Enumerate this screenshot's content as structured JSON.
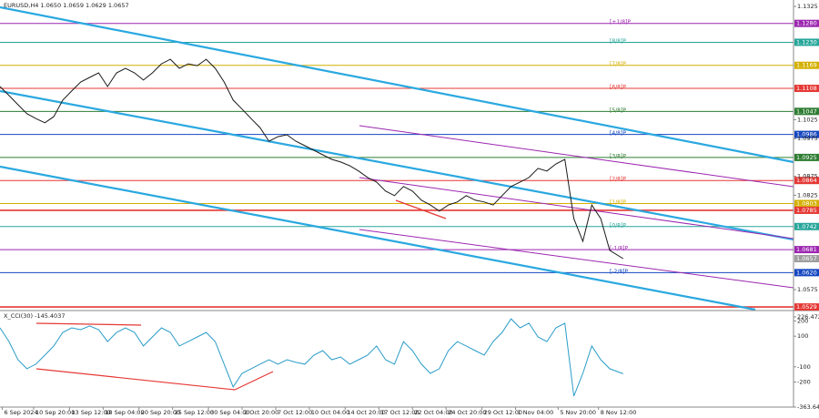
{
  "chart_data": [
    {
      "type": "line",
      "title": "EURUSD,H4  1.0650 1.0659 1.0629 1.0657",
      "xlim": [
        0,
        354
      ],
      "ylim": [
        1.0522,
        1.1342
      ],
      "yticks": [
        1.1325,
        1.1025,
        1.0975,
        1.0875,
        1.0825,
        1.0575
      ],
      "color": "#1a1a1a",
      "x": [
        0,
        4,
        8,
        12,
        16,
        20,
        24,
        28,
        32,
        36,
        40,
        44,
        48,
        52,
        56,
        60,
        64,
        68,
        72,
        76,
        80,
        84,
        88,
        92,
        96,
        100,
        104,
        108,
        112,
        116,
        120,
        124,
        128,
        132,
        136,
        140,
        144,
        148,
        152,
        156,
        160,
        164,
        168,
        172,
        176,
        180,
        184,
        188,
        192,
        196,
        200,
        204,
        208,
        212,
        216,
        220,
        224,
        228,
        232,
        236,
        240,
        244,
        248,
        252,
        256,
        260,
        264,
        268,
        272,
        278
      ],
      "values": [
        1.1113,
        1.1089,
        1.1065,
        1.1041,
        1.1028,
        1.1017,
        1.1033,
        1.1077,
        1.1101,
        1.1125,
        1.1137,
        1.1149,
        1.1113,
        1.1149,
        1.1161,
        1.1149,
        1.113,
        1.1149,
        1.1173,
        1.1185,
        1.1161,
        1.1173,
        1.1168,
        1.1185,
        1.1161,
        1.1125,
        1.1077,
        1.1053,
        1.1028,
        1.1004,
        1.0968,
        1.098,
        1.0985,
        1.0968,
        1.0956,
        1.0944,
        1.0932,
        1.092,
        1.0913,
        1.0903,
        1.0889,
        1.0872,
        1.086,
        1.0836,
        1.0824,
        1.0848,
        1.0836,
        1.0812,
        1.0799,
        1.0783,
        1.0799,
        1.0807,
        1.0824,
        1.0812,
        1.0807,
        1.0799,
        1.0824,
        1.0848,
        1.086,
        1.0872,
        1.0896,
        1.0889,
        1.0908,
        1.092,
        1.0763,
        1.0703,
        1.0799,
        1.0763,
        1.0679,
        1.0657
      ],
      "current": 1.0657,
      "levels": [
        {
          "value": 1.128,
          "label": "1.1280",
          "color": "#9c27b0",
          "tag": "[+1/8]P"
        },
        {
          "value": 1.123,
          "label": "1.1230",
          "color": "#26a69a",
          "tag": "[8/8]P"
        },
        {
          "value": 1.1169,
          "label": "1.1169",
          "color": "#d4b000",
          "tag": "[7/8]P"
        },
        {
          "value": 1.1108,
          "label": "1.1108",
          "color": "#e53935",
          "tag": "[6/8]P"
        },
        {
          "value": 1.1047,
          "label": "1.1047",
          "color": "#2e7d32",
          "tag": "[5/8]P"
        },
        {
          "value": 1.0986,
          "label": "1.0986",
          "color": "#1546c0",
          "tag": "[4/8]P"
        },
        {
          "value": 1.0925,
          "label": "1.0925",
          "color": "#2e7d32",
          "tag": "[3/8]P"
        },
        {
          "value": 1.0864,
          "label": "1.0864",
          "color": "#e53935",
          "tag": "[2/8]P"
        },
        {
          "value": 1.0803,
          "label": "1.0803",
          "color": "#d4b000",
          "tag": "[1/8]P"
        },
        {
          "value": 1.0785,
          "label": "1.0785",
          "color": "#e53935"
        },
        {
          "value": 1.0742,
          "label": "1.0742",
          "color": "#26a69a",
          "tag": "[0/8]P"
        },
        {
          "value": 1.0681,
          "label": "1.0681",
          "color": "#9c27b0",
          "tag": "[-1/8]P"
        },
        {
          "value": 1.062,
          "label": "1.0620",
          "color": "#1546c0",
          "tag": "[-2/8]P"
        },
        {
          "value": 1.0529,
          "label": "1.0529",
          "color": "#e53935"
        }
      ]
    },
    {
      "type": "line",
      "title": "X_CCI(30) -145.4037",
      "xlim": [
        0,
        354
      ],
      "ylim": [
        -363.641,
        262
      ],
      "yticks": [
        226.4725,
        200,
        100,
        -100,
        -200,
        -363.641
      ],
      "color": "#2a9cc8",
      "xticks": [
        {
          "value": 1,
          "label": "6 Sep 2024"
        },
        {
          "value": 15,
          "label": "10 Sep 20:00"
        },
        {
          "value": 31,
          "label": "13 Sep 12:00"
        },
        {
          "value": 46,
          "label": "18 Sep 04:00"
        },
        {
          "value": 62,
          "label": "20 Sep 20:00"
        },
        {
          "value": 77,
          "label": "25 Sep 12:00"
        },
        {
          "value": 93,
          "label": "30 Sep 04:00"
        },
        {
          "value": 108,
          "label": "2 Oct 20:00"
        },
        {
          "value": 123,
          "label": "7 Oct 12:00"
        },
        {
          "value": 138,
          "label": "10 Oct 04:00"
        },
        {
          "value": 154,
          "label": "14 Oct 20:00"
        },
        {
          "value": 169,
          "label": "17 Oct 12:00"
        },
        {
          "value": 184,
          "label": "22 Oct 04:00"
        },
        {
          "value": 199,
          "label": "24 Oct 20:00"
        },
        {
          "value": 215,
          "label": "29 Oct 12:00"
        },
        {
          "value": 230,
          "label": "1 Nov 04:00"
        },
        {
          "value": 249,
          "label": "5 Nov 20:00"
        },
        {
          "value": 267,
          "label": "8 Nov 12:00"
        }
      ],
      "x": [
        0,
        4,
        8,
        12,
        16,
        20,
        24,
        28,
        32,
        36,
        40,
        44,
        48,
        52,
        56,
        60,
        64,
        68,
        72,
        76,
        80,
        84,
        88,
        92,
        96,
        100,
        104,
        108,
        112,
        116,
        120,
        124,
        128,
        132,
        136,
        140,
        144,
        148,
        152,
        156,
        160,
        164,
        168,
        172,
        176,
        180,
        184,
        188,
        192,
        196,
        200,
        204,
        208,
        212,
        216,
        220,
        224,
        228,
        232,
        236,
        240,
        244,
        248,
        252,
        256,
        260,
        264,
        268,
        272,
        278
      ],
      "values": [
        155,
        65,
        -54,
        -113,
        -83,
        -24,
        36,
        125,
        155,
        143,
        167,
        143,
        65,
        125,
        155,
        125,
        36,
        95,
        155,
        125,
        36,
        65,
        95,
        125,
        65,
        -83,
        -232,
        -143,
        -113,
        -83,
        -54,
        -83,
        -54,
        -71,
        -83,
        -24,
        6,
        -54,
        -36,
        -83,
        -54,
        -24,
        36,
        -54,
        -83,
        65,
        6,
        -83,
        -143,
        -113,
        6,
        65,
        36,
        6,
        -24,
        65,
        125,
        214,
        155,
        185,
        95,
        65,
        155,
        185,
        -292,
        -143,
        36,
        -54,
        -113,
        -145.4
      ]
    }
  ]
}
